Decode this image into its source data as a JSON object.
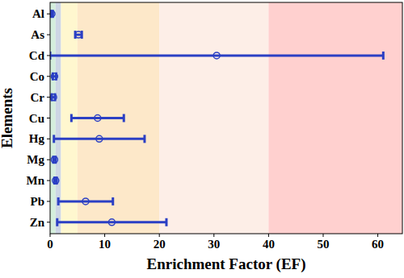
{
  "chart_data": {
    "type": "errorbar",
    "orientation": "horizontal",
    "x_label": "Enrichment Factor (EF)",
    "y_label": "Elements",
    "categories": [
      "Al",
      "As",
      "Cd",
      "Co",
      "Cr",
      "Cu",
      "Hg",
      "Mg",
      "Mn",
      "Pb",
      "Zn"
    ],
    "values": [
      0.3,
      5.2,
      30.5,
      0.8,
      0.6,
      8.7,
      9.0,
      0.8,
      1.0,
      6.5,
      11.3
    ],
    "errors": [
      0.2,
      0.6,
      30.5,
      0.3,
      0.3,
      4.8,
      8.3,
      0.2,
      0.2,
      5.0,
      10.0
    ],
    "color": "#2b3fc4",
    "marker": "open-circle",
    "xlim": [
      0,
      64.5
    ],
    "xticks": [
      0,
      10,
      20,
      30,
      40,
      50,
      60
    ],
    "bands": [
      {
        "start": 0,
        "end": 1,
        "color": "#d4eedc"
      },
      {
        "start": 1,
        "end": 2,
        "color": "#cdd6e4"
      },
      {
        "start": 2,
        "end": 5,
        "color": "#fff7cf"
      },
      {
        "start": 5,
        "end": 20,
        "color": "#fde8c9"
      },
      {
        "start": 20,
        "end": 40,
        "color": "#fdeee7"
      },
      {
        "start": 40,
        "end": 64.5,
        "color": "#ffd0cf"
      }
    ]
  }
}
